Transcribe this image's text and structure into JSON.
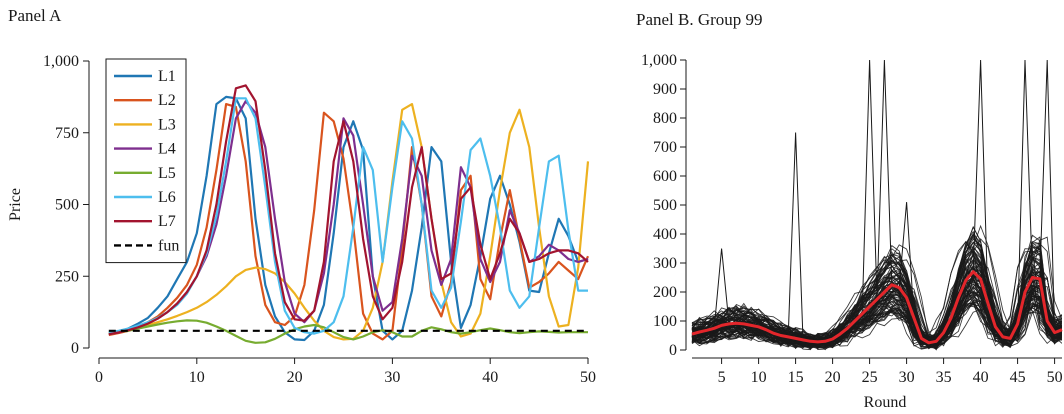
{
  "panel_a_title": "Panel A",
  "panel_b_title": "Panel B. Group 99",
  "chart_data": [
    {
      "type": "line",
      "panel": "A",
      "ylabel": "Price",
      "xlabel": "",
      "xlim": [
        0,
        50
      ],
      "ylim": [
        0,
        1000
      ],
      "xticks": [
        0,
        10,
        20,
        30,
        40,
        50
      ],
      "yticks": [
        0,
        250,
        500,
        750,
        1000
      ],
      "ytick_labels": [
        "0",
        "250",
        "500",
        "750",
        "1,000"
      ],
      "legend_position": "top-left",
      "x": [
        1,
        2,
        3,
        4,
        5,
        6,
        7,
        8,
        9,
        10,
        11,
        12,
        13,
        14,
        15,
        16,
        17,
        18,
        19,
        20,
        21,
        22,
        23,
        24,
        25,
        26,
        27,
        28,
        29,
        30,
        31,
        32,
        33,
        34,
        35,
        36,
        37,
        38,
        39,
        40,
        41,
        42,
        43,
        44,
        45,
        46,
        47,
        48,
        49,
        50
      ],
      "series": [
        {
          "name": "L1",
          "color": "#1f77b4",
          "dash": false,
          "values": [
            50,
            58,
            68,
            85,
            105,
            140,
            180,
            240,
            300,
            400,
            600,
            850,
            875,
            870,
            800,
            450,
            220,
            110,
            55,
            30,
            28,
            60,
            150,
            400,
            700,
            790,
            690,
            250,
            60,
            30,
            60,
            200,
            420,
            700,
            650,
            300,
            70,
            150,
            320,
            520,
            600,
            500,
            370,
            200,
            195,
            330,
            450,
            390,
            300,
            310
          ]
        },
        {
          "name": "L2",
          "color": "#d9541e",
          "dash": false,
          "values": [
            45,
            52,
            60,
            72,
            90,
            110,
            140,
            175,
            220,
            290,
            420,
            620,
            850,
            840,
            650,
            320,
            150,
            90,
            80,
            110,
            220,
            480,
            820,
            790,
            660,
            420,
            120,
            50,
            30,
            60,
            350,
            700,
            500,
            180,
            110,
            230,
            550,
            600,
            240,
            170,
            380,
            550,
            380,
            210,
            230,
            260,
            300,
            270,
            240,
            320
          ]
        },
        {
          "name": "L3",
          "color": "#edb120",
          "dash": false,
          "values": [
            50,
            55,
            62,
            70,
            80,
            90,
            100,
            112,
            125,
            140,
            160,
            185,
            215,
            250,
            272,
            280,
            275,
            260,
            230,
            190,
            140,
            95,
            60,
            38,
            30,
            32,
            60,
            140,
            300,
            580,
            830,
            850,
            700,
            450,
            230,
            90,
            40,
            50,
            120,
            320,
            550,
            750,
            830,
            700,
            420,
            180,
            75,
            80,
            280,
            650
          ]
        },
        {
          "name": "L4",
          "color": "#7e2f8e",
          "dash": false,
          "values": [
            48,
            55,
            63,
            73,
            86,
            103,
            125,
            155,
            195,
            250,
            320,
            430,
            600,
            800,
            860,
            820,
            700,
            450,
            230,
            120,
            90,
            130,
            260,
            500,
            800,
            740,
            500,
            250,
            130,
            160,
            380,
            670,
            600,
            340,
            220,
            310,
            630,
            560,
            310,
            230,
            300,
            480,
            400,
            300,
            320,
            360,
            340,
            310,
            300,
            310
          ]
        },
        {
          "name": "L5",
          "color": "#77ac30",
          "dash": false,
          "values": [
            50,
            55,
            60,
            68,
            75,
            82,
            88,
            93,
            96,
            95,
            88,
            75,
            60,
            42,
            25,
            18,
            20,
            32,
            50,
            65,
            75,
            80,
            72,
            55,
            38,
            30,
            40,
            55,
            62,
            55,
            40,
            40,
            60,
            72,
            65,
            55,
            50,
            55,
            62,
            68,
            62,
            55,
            52,
            55,
            58,
            56,
            54,
            55,
            55,
            55
          ]
        },
        {
          "name": "L6",
          "color": "#4dbeee",
          "dash": false,
          "values": [
            55,
            60,
            68,
            78,
            90,
            105,
            125,
            150,
            190,
            250,
            330,
            460,
            650,
            870,
            870,
            800,
            560,
            300,
            130,
            70,
            55,
            50,
            60,
            90,
            180,
            420,
            700,
            620,
            300,
            560,
            790,
            730,
            500,
            200,
            140,
            210,
            440,
            690,
            730,
            600,
            420,
            200,
            140,
            180,
            420,
            650,
            670,
            410,
            200,
            200
          ]
        },
        {
          "name": "L7",
          "color": "#a2142f",
          "dash": false,
          "values": [
            48,
            54,
            62,
            72,
            85,
            102,
            125,
            155,
            195,
            250,
            340,
            500,
            720,
            905,
            915,
            860,
            620,
            330,
            160,
            100,
            95,
            130,
            300,
            650,
            790,
            650,
            380,
            180,
            100,
            140,
            300,
            560,
            700,
            450,
            240,
            260,
            520,
            560,
            360,
            240,
            330,
            450,
            400,
            300,
            310,
            330,
            340,
            340,
            330,
            300
          ]
        },
        {
          "name": "fun",
          "color": "#000000",
          "dash": true,
          "values": [
            60,
            60,
            60,
            60,
            60,
            60,
            60,
            60,
            60,
            60,
            60,
            60,
            60,
            60,
            60,
            60,
            60,
            60,
            60,
            60,
            60,
            60,
            60,
            60,
            60,
            60,
            60,
            60,
            60,
            60,
            60,
            60,
            60,
            60,
            60,
            60,
            60,
            60,
            60,
            60,
            60,
            60,
            60,
            60,
            60,
            60,
            60,
            60,
            60,
            60
          ]
        }
      ]
    },
    {
      "type": "line",
      "panel": "B",
      "xlabel": "Round",
      "ylabel": "",
      "xlim": [
        1,
        51
      ],
      "ylim": [
        0,
        1000
      ],
      "xticks": [
        5,
        10,
        15,
        20,
        25,
        30,
        35,
        40,
        45,
        50
      ],
      "yticks": [
        0,
        100,
        200,
        300,
        400,
        500,
        600,
        700,
        800,
        900,
        1000
      ],
      "ytick_labels": [
        "0",
        "100",
        "200",
        "300",
        "400",
        "500",
        "600",
        "700",
        "800",
        "900",
        "1,000"
      ],
      "x": [
        1,
        2,
        3,
        4,
        5,
        6,
        7,
        8,
        9,
        10,
        11,
        12,
        13,
        14,
        15,
        16,
        17,
        18,
        19,
        20,
        21,
        22,
        23,
        24,
        25,
        26,
        27,
        28,
        29,
        30,
        31,
        32,
        33,
        34,
        35,
        36,
        37,
        38,
        39,
        40,
        41,
        42,
        43,
        44,
        45,
        46,
        47,
        48,
        49,
        50,
        51
      ],
      "mean_series": {
        "color": "#e3262b",
        "values": [
          55,
          62,
          68,
          75,
          85,
          90,
          92,
          90,
          85,
          80,
          70,
          58,
          50,
          45,
          40,
          35,
          30,
          28,
          30,
          38,
          55,
          75,
          100,
          125,
          150,
          175,
          200,
          225,
          215,
          180,
          110,
          40,
          25,
          30,
          60,
          110,
          180,
          240,
          270,
          245,
          160,
          80,
          45,
          40,
          90,
          200,
          250,
          245,
          100,
          60,
          70
        ]
      },
      "individual_series": {
        "color": "#1a1a1a",
        "count": 90
      },
      "spikes": [
        {
          "x": 5,
          "y": 350
        },
        {
          "x": 15,
          "y": 750
        },
        {
          "x": 25,
          "y": 1000
        },
        {
          "x": 27,
          "y": 1000
        },
        {
          "x": 30,
          "y": 510
        },
        {
          "x": 40,
          "y": 1000
        },
        {
          "x": 46,
          "y": 1000
        },
        {
          "x": 49,
          "y": 1000
        }
      ]
    }
  ]
}
